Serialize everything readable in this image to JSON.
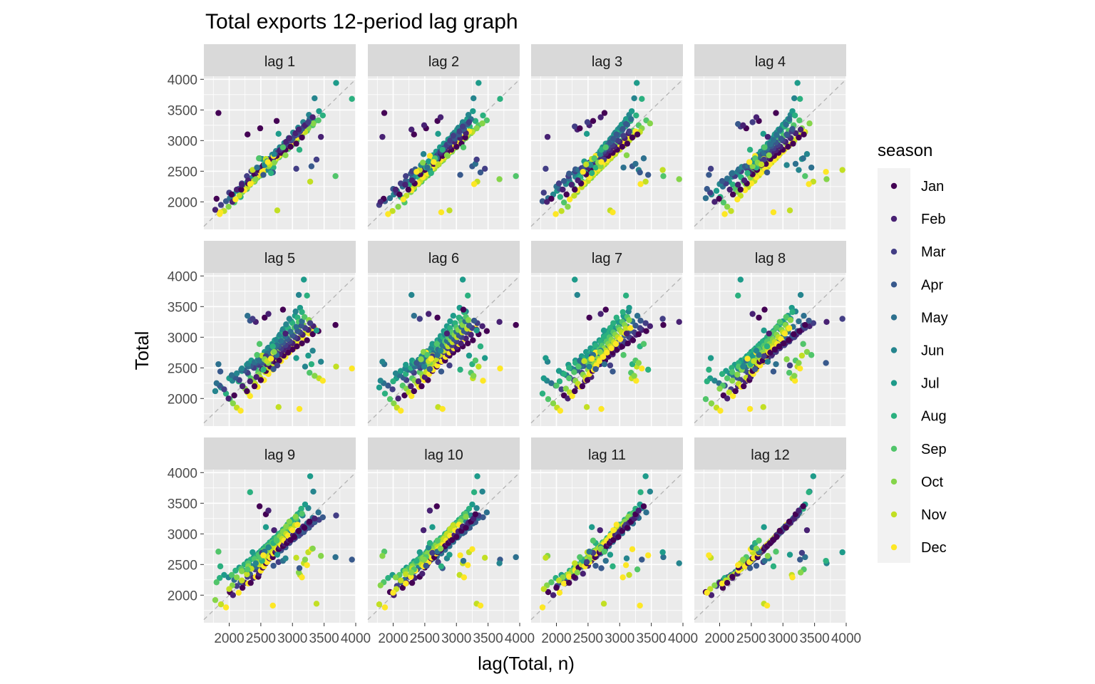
{
  "chart_data": {
    "type": "scatter",
    "title": "Total exports 12-period lag graph",
    "xlabel": "lag(Total, n)",
    "ylabel": "Total",
    "xlim": [
      1600,
      4000
    ],
    "ylim": [
      1550,
      4050
    ],
    "x_ticks": [
      "2000",
      "2500",
      "3000",
      "3500",
      "4000"
    ],
    "y_ticks": [
      "2000",
      "2500",
      "3000",
      "3500",
      "4000"
    ],
    "x_tick_values": [
      2000,
      2500,
      3000,
      3500,
      4000
    ],
    "y_tick_values": [
      2000,
      2500,
      3000,
      3500,
      4000
    ],
    "panels": [
      "lag 1",
      "lag 2",
      "lag 3",
      "lag 4",
      "lag 5",
      "lag 6",
      "lag 7",
      "lag 8",
      "lag 9",
      "lag 10",
      "lag 11",
      "lag 12"
    ],
    "reference_line": "y = x (dashed)",
    "grid": true,
    "legend_title": "season",
    "legend_position": "right",
    "series": [
      {
        "name": "Jan",
        "color": "#440154"
      },
      {
        "name": "Feb",
        "color": "#482173"
      },
      {
        "name": "Mar",
        "color": "#433E85"
      },
      {
        "name": "Apr",
        "color": "#38598C"
      },
      {
        "name": "May",
        "color": "#2D708E"
      },
      {
        "name": "Jun",
        "color": "#25858E"
      },
      {
        "name": "Jul",
        "color": "#1E9B8A"
      },
      {
        "name": "Aug",
        "color": "#2BB07F"
      },
      {
        "name": "Sep",
        "color": "#51C56A"
      },
      {
        "name": "Oct",
        "color": "#85D54A"
      },
      {
        "name": "Nov",
        "color": "#C2DF23"
      },
      {
        "name": "Dec",
        "color": "#FDE725"
      }
    ],
    "total_series": [
      {
        "month": "Jan",
        "values": [
          1780,
          2050,
          2120,
          2200,
          2300,
          2450,
          2520,
          2600,
          2620,
          2700,
          2750,
          2800,
          2850,
          2900,
          2950,
          3050,
          3100,
          3200,
          3320,
          3450
        ]
      },
      {
        "month": "Feb",
        "values": [
          1870,
          2000,
          2200,
          2280,
          2350,
          2480,
          2560,
          2610,
          2680,
          2720,
          2790,
          2840,
          2900,
          2980,
          3040,
          3120,
          3180,
          3250,
          3380,
          3060
        ]
      },
      {
        "month": "Mar",
        "values": [
          1950,
          2150,
          2300,
          2420,
          2500,
          2550,
          2600,
          2650,
          2700,
          2760,
          2820,
          2870,
          2930,
          3000,
          3080,
          3150,
          3230,
          3300,
          2690,
          2540
        ]
      },
      {
        "month": "Apr",
        "values": [
          2010,
          2210,
          2340,
          2460,
          2530,
          2580,
          2640,
          2690,
          2730,
          2780,
          2850,
          2910,
          2970,
          3030,
          3100,
          3190,
          3270,
          2580,
          2480,
          2440
        ]
      },
      {
        "month": "May",
        "values": [
          2060,
          2250,
          2380,
          2470,
          2520,
          2590,
          2630,
          2680,
          2740,
          2800,
          2870,
          2940,
          3010,
          3090,
          3170,
          3260,
          3350,
          2620,
          2710,
          2560
        ]
      },
      {
        "month": "Jun",
        "values": [
          2120,
          2290,
          2410,
          2490,
          2570,
          2630,
          2700,
          2770,
          2830,
          2890,
          2960,
          3040,
          3130,
          3210,
          3300,
          3420,
          3690,
          2520,
          2780,
          2600
        ]
      },
      {
        "month": "Jul",
        "values": [
          2180,
          2330,
          2450,
          2550,
          2620,
          2690,
          2760,
          2820,
          2890,
          2950,
          3020,
          3100,
          3180,
          3260,
          3350,
          3480,
          3940,
          2700,
          3110,
          2660
        ]
      },
      {
        "month": "Aug",
        "values": [
          2080,
          2280,
          2400,
          2500,
          2580,
          2650,
          2720,
          2790,
          2860,
          2930,
          3000,
          3070,
          3150,
          3230,
          3320,
          3410,
          3680,
          2560,
          2850,
          2470
        ]
      },
      {
        "month": "Sep",
        "values": [
          1990,
          2210,
          2330,
          2430,
          2520,
          2590,
          2660,
          2730,
          2800,
          2860,
          2930,
          3000,
          3080,
          3160,
          3250,
          3330,
          2420,
          2620,
          2890,
          2710
        ]
      },
      {
        "month": "Oct",
        "values": [
          1920,
          2160,
          2290,
          2390,
          2470,
          2540,
          2610,
          2680,
          2750,
          2820,
          2890,
          2960,
          3040,
          3120,
          3200,
          3280,
          2370,
          2580,
          2760,
          2640
        ]
      },
      {
        "month": "Nov",
        "values": [
          1850,
          2100,
          2240,
          2340,
          2430,
          2500,
          2570,
          2640,
          2710,
          2780,
          2850,
          2920,
          3000,
          3080,
          3140,
          2330,
          2520,
          2700,
          1860,
          2610
        ]
      },
      {
        "month": "Dec",
        "values": [
          1800,
          2040,
          2190,
          2300,
          2400,
          2470,
          2540,
          2610,
          2680,
          2750,
          2820,
          2890,
          2970,
          3060,
          3150,
          2290,
          2490,
          2750,
          1830,
          2650
        ]
      }
    ]
  }
}
